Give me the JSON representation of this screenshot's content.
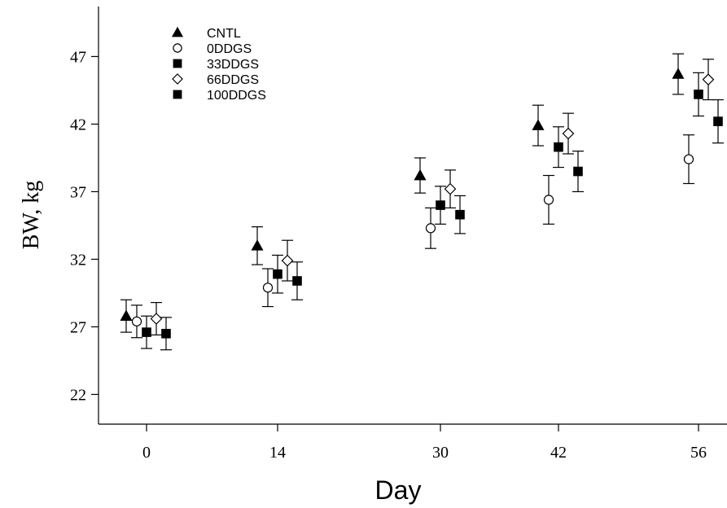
{
  "chart_data": {
    "type": "scatter",
    "xlabel": "Day",
    "ylabel": "BW, kg",
    "ylim": [
      19.8,
      50.7
    ],
    "y_ticks": [
      22,
      27,
      32,
      37,
      42,
      47
    ],
    "categories": [
      "0",
      "14",
      "30",
      "42",
      "56"
    ],
    "legend_position": "top-left",
    "grid": false,
    "series": [
      {
        "name": "CNTL",
        "marker": "triangle-filled",
        "values": [
          27.8,
          33.0,
          38.2,
          41.9,
          45.7
        ],
        "errors": [
          1.2,
          1.4,
          1.3,
          1.5,
          1.5
        ]
      },
      {
        "name": "0DDGS",
        "marker": "circle-open",
        "values": [
          27.4,
          29.9,
          34.3,
          36.4,
          39.4
        ],
        "errors": [
          1.2,
          1.4,
          1.5,
          1.8,
          1.8
        ]
      },
      {
        "name": "33DDGS",
        "marker": "square-filled",
        "values": [
          26.6,
          30.9,
          36.0,
          40.3,
          44.2
        ],
        "errors": [
          1.2,
          1.4,
          1.4,
          1.5,
          1.6
        ]
      },
      {
        "name": "66DDGS",
        "marker": "diamond-open",
        "values": [
          27.6,
          31.9,
          37.2,
          41.3,
          45.3
        ],
        "errors": [
          1.2,
          1.5,
          1.4,
          1.5,
          1.5
        ]
      },
      {
        "name": "100DDGS",
        "marker": "square-filled",
        "values": [
          26.5,
          30.4,
          35.3,
          38.5,
          42.2
        ],
        "errors": [
          1.2,
          1.4,
          1.4,
          1.5,
          1.6
        ]
      }
    ]
  }
}
